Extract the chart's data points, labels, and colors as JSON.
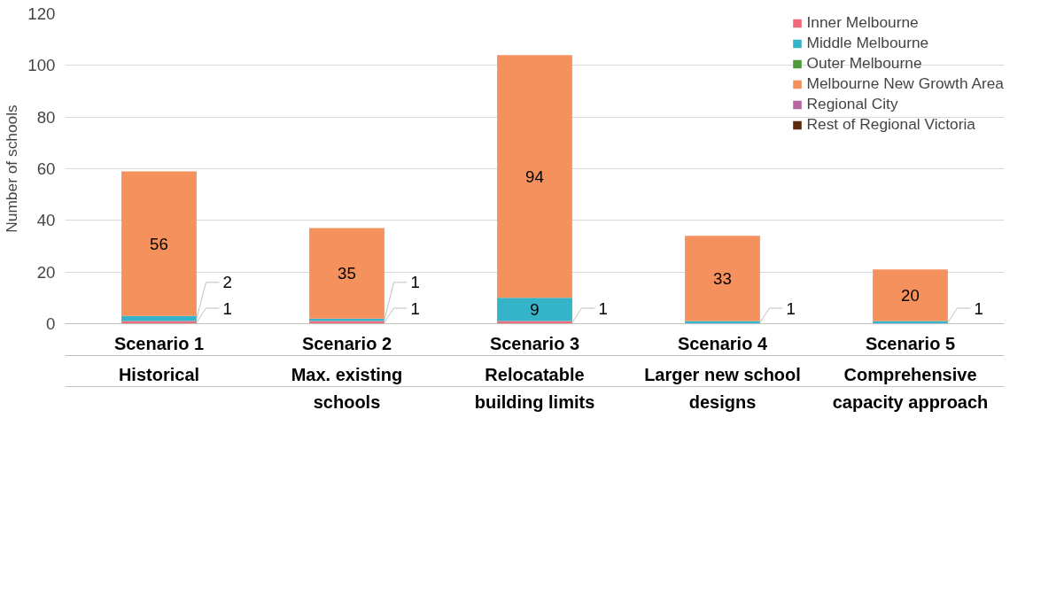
{
  "chart_data": {
    "type": "bar",
    "stacked": true,
    "ylabel": "Number of schools",
    "categories": [
      "Scenario 1\nHistorical",
      "Scenario 2\nMax. existing\nschools",
      "Scenario 3\nRelocatable\nbuilding limits",
      "Scenario 4\nLarger new school\ndesigns",
      "Scenario 5\nComprehensive\ncapacity approach"
    ],
    "series": [
      {
        "name": "Inner Melbourne",
        "color": "#f0697a",
        "values": [
          1,
          1,
          1,
          0,
          0
        ],
        "value_labels": [
          "1",
          "1",
          "1",
          null,
          null
        ]
      },
      {
        "name": "Middle Melbourne",
        "color": "#35b3c9",
        "values": [
          2,
          1,
          9,
          1,
          1
        ],
        "value_labels": [
          "2",
          "1",
          "9",
          "1",
          "1"
        ]
      },
      {
        "name": "Outer Melbourne",
        "color": "#4f9a3c",
        "values": [
          0,
          0,
          0,
          0,
          0
        ]
      },
      {
        "name": "Melbourne New Growth Area",
        "color": "#f4915c",
        "values": [
          56,
          35,
          94,
          33,
          20
        ],
        "value_labels": [
          "56",
          "35",
          "94",
          "33",
          "20"
        ]
      },
      {
        "name": "Regional City",
        "color": "#b5679f",
        "values": [
          0,
          0,
          0,
          0,
          0
        ]
      },
      {
        "name": "Rest of Regional Victoria",
        "color": "#5c2a0c",
        "values": [
          0,
          0,
          0,
          0,
          0
        ]
      }
    ],
    "ylim": [
      0,
      120
    ],
    "yticks": [
      0,
      20,
      40,
      60,
      80,
      100,
      120
    ],
    "grid": "y",
    "legend": "top right"
  }
}
